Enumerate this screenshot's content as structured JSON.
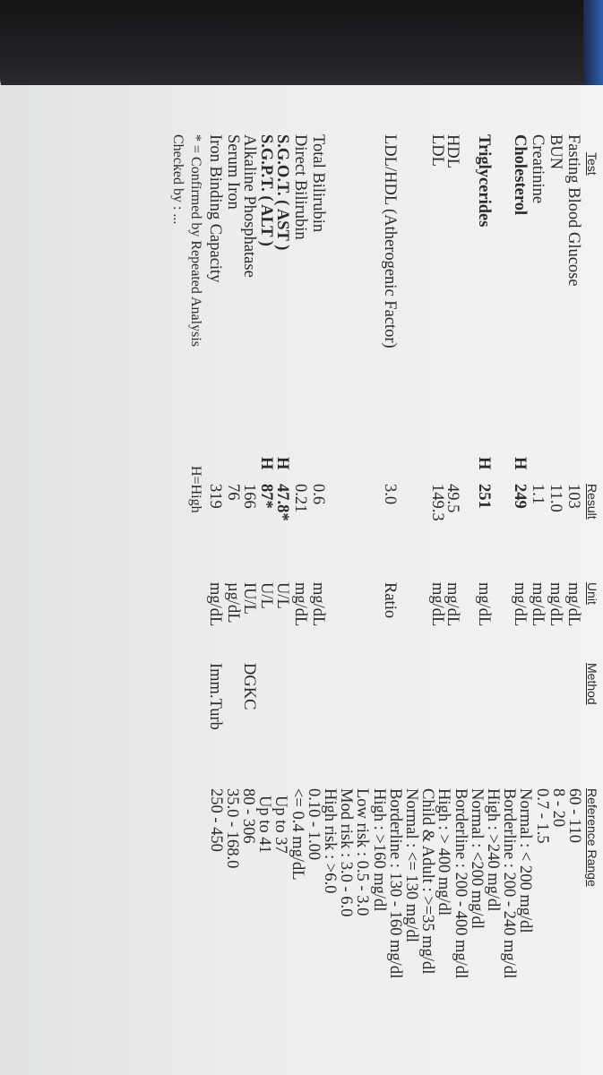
{
  "headers": {
    "test": "Test",
    "result": "Result",
    "unit": "Unit",
    "method": "Method",
    "reference": "Reference Range"
  },
  "rows": [
    {
      "test": "Fasting Blood Glucose",
      "flag": "",
      "result": "103",
      "unit": "mg/dL",
      "method": ""
    },
    {
      "test": "BUN",
      "flag": "",
      "result": "11.0",
      "unit": "mg/dL",
      "method": ""
    },
    {
      "test": "Creatinine",
      "flag": "",
      "result": "1.1",
      "unit": "mg/dL",
      "method": ""
    },
    {
      "test": "Cholesterol",
      "flag": "H",
      "result": "249",
      "unit": "mg/dL",
      "method": ""
    },
    {
      "test": "Triglycerides",
      "flag": "H",
      "result": "251",
      "unit": "mg/dL",
      "method": ""
    },
    {
      "test": "HDL",
      "flag": "",
      "result": "49.5",
      "unit": "mg/dL",
      "method": ""
    },
    {
      "test": "LDL",
      "flag": "",
      "result": "149.3",
      "unit": "mg/dL",
      "method": ""
    },
    {
      "test": "LDL/HDL (Atherogenic Factor)",
      "flag": "",
      "result": "3.0",
      "unit": "Ratio",
      "method": ""
    },
    {
      "test": "Total Bilirubin",
      "flag": "",
      "result": "0.6",
      "unit": "mg/dL",
      "method": ""
    },
    {
      "test": "Direct Bilirubin",
      "flag": "",
      "result": "0.21",
      "unit": "mg/dL",
      "method": ""
    },
    {
      "test": "S.G.O.T. ( AST )",
      "flag": "H",
      "result": "47.8*",
      "unit": "U/L",
      "method": ""
    },
    {
      "test": "S.G.P.T. ( ALT )",
      "flag": "H",
      "result": "87*",
      "unit": "U/L",
      "method": ""
    },
    {
      "test": "Alkaline Phosphatase",
      "flag": "",
      "result": "166",
      "unit": "IU/L",
      "method": "DGKC"
    },
    {
      "test": "Serum Iron",
      "flag": "",
      "result": "76",
      "unit": "µg/dL",
      "method": ""
    },
    {
      "test": "Iron Binding Capacity",
      "flag": "",
      "result": "319",
      "unit": "mg/dL",
      "method": "Imm.Turb"
    }
  ],
  "reference_lines": [
    "60 - 110",
    "8 - 20",
    "0.7 - 1.5",
    "Normal : < 200 mg/dl",
    "Borderline : 200 - 240 mg/dl",
    "High : >240 mg/dl",
    "Normal : <200 mg/dl",
    "Borderline : 200 - 400 mg/dl",
    "High : > 400 mg/dl",
    "Child & Adult : >=35 mg/dl",
    "Normal : <= 130 mg/dl",
    "Borderline : 130 - 160 mg/dl",
    "High : >160 mg/dl",
    "Low risk : 0.5 - 3.0",
    "Mod risk : 3.0 - 6.0",
    "High risk : >6.0",
    "0.10 - 1.00",
    "<= 0.4 mg/dL",
    "Up to 37",
    "Up to 41",
    "80 - 306",
    "35.0 - 168.0",
    "250 - 450"
  ],
  "footer": {
    "note": "* = Confirmed by Repeated Analysis",
    "legend": "H=High",
    "checked": "Checked by : ..."
  }
}
